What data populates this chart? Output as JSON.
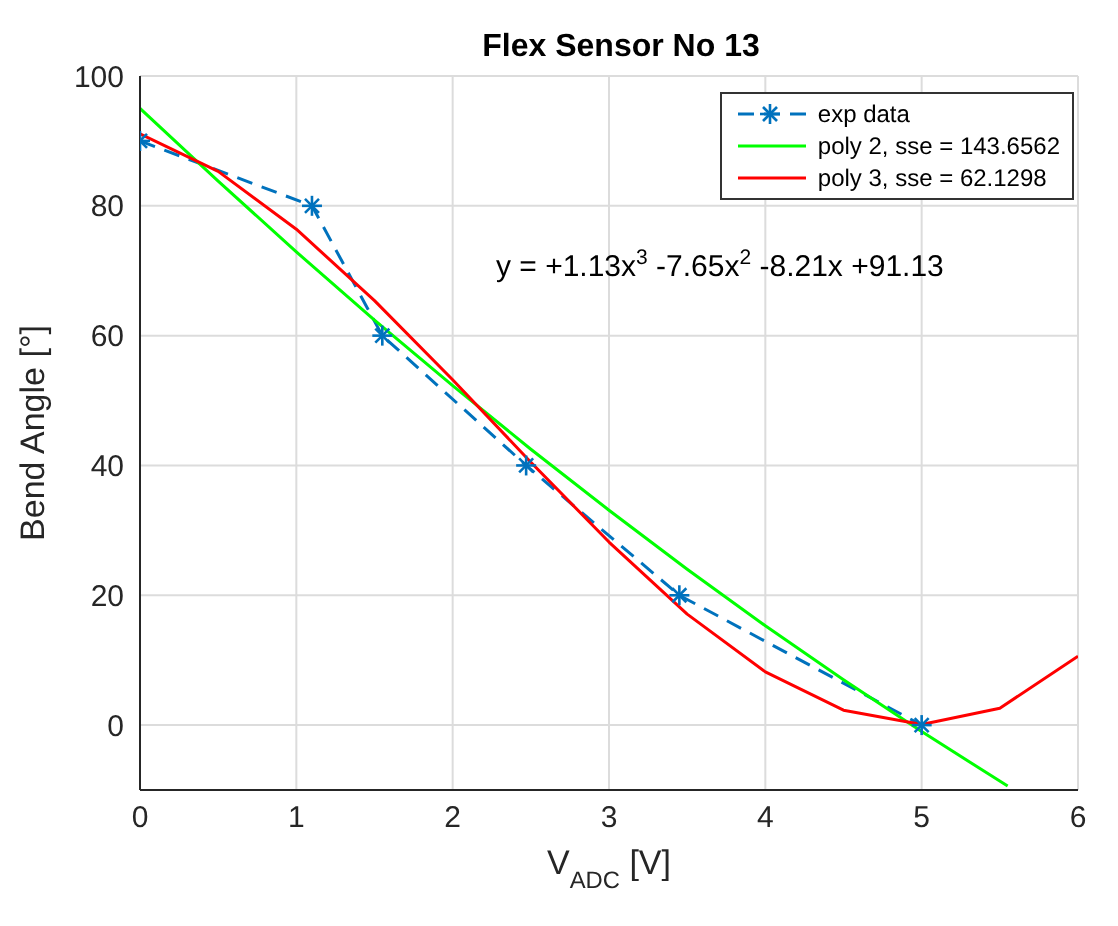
{
  "chart_data": {
    "type": "line",
    "title": "Flex Sensor No 13",
    "xlabel": "V$_{ADC}$ [V]",
    "ylabel": "Bend Angle [°]",
    "xlim": [
      0,
      6
    ],
    "xticks": [
      0,
      1,
      2,
      3,
      4,
      5,
      6
    ],
    "ylim": [
      -10,
      100
    ],
    "yticks": [
      0,
      20,
      40,
      60,
      80,
      100
    ],
    "grid": true,
    "legend": "top right",
    "annotations": [
      "y = +1.13x$^{3}$ -7.65x$^{2}$ -8.21x +91.13"
    ],
    "series": [
      {
        "name": "exp data",
        "color": "#0072bd",
        "line_style": "dashed",
        "marker": "cross",
        "x": [
          0,
          1.1,
          1.55,
          2.47,
          3.45,
          5.0
        ],
        "values": [
          90,
          80,
          60,
          40,
          20,
          0
        ]
      },
      {
        "name": "poly 2, sse = 143.6562",
        "color": "#00ff00",
        "line_style": "solid",
        "marker": "none",
        "x": [
          0,
          0.5,
          1,
          1.5,
          2,
          2.5,
          3,
          3.5,
          4,
          4.5,
          5,
          5.55
        ],
        "values": [
          95,
          83.8,
          72.9,
          62.4,
          52.3,
          42.5,
          33.1,
          24,
          15.3,
          7,
          -1,
          -9.4
        ]
      },
      {
        "name": "poly 3, sse = 62.1298",
        "color": "#ff0000",
        "line_style": "solid",
        "marker": "none",
        "x": [
          0,
          0.5,
          1,
          1.5,
          2,
          2.5,
          3,
          3.5,
          4,
          4.5,
          5,
          5.5,
          6
        ],
        "values": [
          91.1,
          85.3,
          76.4,
          65.4,
          53.2,
          40.5,
          28.2,
          17.1,
          8.2,
          2.3,
          0.1,
          2.6,
          10.6
        ]
      }
    ]
  }
}
